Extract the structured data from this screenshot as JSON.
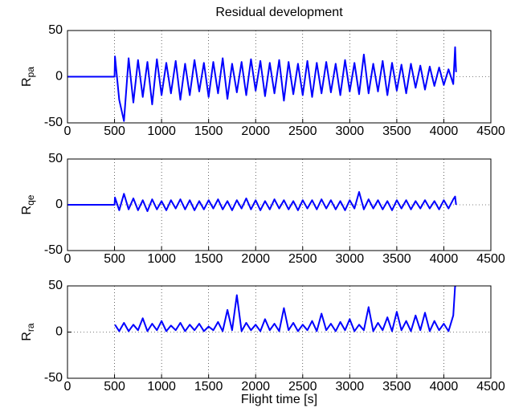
{
  "chart_data": [
    {
      "type": "line",
      "title": "Residual development",
      "ylabel": "R",
      "ylabel_sub": "pa",
      "xlim": [
        0,
        4500
      ],
      "xticks": [
        0,
        500,
        1000,
        1500,
        2000,
        2500,
        3000,
        3500,
        4000,
        4500
      ],
      "ylim": [
        -50,
        50
      ],
      "yticks": [
        -50,
        0,
        50
      ],
      "grid": true,
      "x": [
        0,
        500,
        505,
        550,
        600,
        650,
        700,
        750,
        800,
        850,
        900,
        950,
        1000,
        1050,
        1100,
        1150,
        1200,
        1250,
        1300,
        1350,
        1400,
        1450,
        1500,
        1550,
        1600,
        1650,
        1700,
        1750,
        1800,
        1850,
        1900,
        1950,
        2000,
        2050,
        2100,
        2150,
        2200,
        2250,
        2300,
        2350,
        2400,
        2450,
        2500,
        2550,
        2600,
        2650,
        2700,
        2750,
        2800,
        2850,
        2900,
        2950,
        3000,
        3050,
        3100,
        3150,
        3200,
        3250,
        3300,
        3350,
        3400,
        3450,
        3500,
        3550,
        3600,
        3650,
        3700,
        3750,
        3800,
        3850,
        3900,
        3950,
        4000,
        4050,
        4100,
        4120,
        4130
      ],
      "series": [
        {
          "color": "#0000ff",
          "values": [
            0,
            0,
            22,
            -25,
            -48,
            20,
            -28,
            18,
            -22,
            16,
            -30,
            19,
            -20,
            15,
            -18,
            17,
            -25,
            14,
            -20,
            18,
            -16,
            15,
            -22,
            16,
            -18,
            20,
            -24,
            14,
            -17,
            16,
            -20,
            19,
            -15,
            17,
            -21,
            15,
            -18,
            18,
            -26,
            16,
            -19,
            14,
            -20,
            17,
            -22,
            15,
            -18,
            16,
            -17,
            14,
            -20,
            18,
            -16,
            15,
            -19,
            24,
            -18,
            14,
            -16,
            17,
            -20,
            15,
            -15,
            13,
            -18,
            14,
            -12,
            12,
            -14,
            11,
            -10,
            10,
            -9,
            8,
            -8,
            32,
            5
          ]
        }
      ]
    },
    {
      "type": "line",
      "ylabel": "R",
      "ylabel_sub": "qe",
      "xlim": [
        0,
        4500
      ],
      "xticks": [
        0,
        500,
        1000,
        1500,
        2000,
        2500,
        3000,
        3500,
        4000,
        4500
      ],
      "ylim": [
        -50,
        50
      ],
      "yticks": [
        -50,
        0,
        50
      ],
      "grid": true,
      "x": [
        0,
        500,
        505,
        550,
        600,
        650,
        700,
        750,
        800,
        850,
        900,
        950,
        1000,
        1050,
        1100,
        1150,
        1200,
        1250,
        1300,
        1350,
        1400,
        1450,
        1500,
        1550,
        1600,
        1650,
        1700,
        1750,
        1800,
        1850,
        1900,
        1950,
        2000,
        2050,
        2100,
        2150,
        2200,
        2250,
        2300,
        2350,
        2400,
        2450,
        2500,
        2550,
        2600,
        2650,
        2700,
        2750,
        2800,
        2850,
        2900,
        2950,
        3000,
        3050,
        3100,
        3150,
        3200,
        3250,
        3300,
        3350,
        3400,
        3450,
        3500,
        3550,
        3600,
        3650,
        3700,
        3750,
        3800,
        3850,
        3900,
        3950,
        4000,
        4050,
        4100,
        4120,
        4130
      ],
      "series": [
        {
          "color": "#0000ff",
          "values": [
            0,
            0,
            8,
            -6,
            12,
            -5,
            7,
            -6,
            5,
            -7,
            6,
            -5,
            4,
            -6,
            5,
            -4,
            6,
            -5,
            5,
            -6,
            4,
            -5,
            5,
            -4,
            6,
            -5,
            4,
            -6,
            5,
            -4,
            7,
            -5,
            5,
            -6,
            4,
            -5,
            6,
            -4,
            5,
            -5,
            4,
            -6,
            5,
            -4,
            5,
            -5,
            6,
            -4,
            5,
            -5,
            4,
            -6,
            5,
            -4,
            14,
            -5,
            6,
            -4,
            5,
            -5,
            4,
            -6,
            5,
            -4,
            5,
            -5,
            4,
            -4,
            5,
            -4,
            4,
            -5,
            5,
            -4,
            6,
            9,
            0
          ]
        }
      ]
    },
    {
      "type": "line",
      "ylabel": "R",
      "ylabel_sub": "ra",
      "xlabel": "Flight time [s]",
      "xlim": [
        0,
        4500
      ],
      "xticks": [
        0,
        500,
        1000,
        1500,
        2000,
        2500,
        3000,
        3500,
        4000,
        4500
      ],
      "ylim": [
        -50,
        50
      ],
      "yticks": [
        -50,
        0,
        50
      ],
      "grid": true,
      "x": [
        0,
        500,
        505,
        550,
        600,
        650,
        700,
        750,
        800,
        850,
        900,
        950,
        1000,
        1050,
        1100,
        1150,
        1200,
        1250,
        1300,
        1350,
        1400,
        1450,
        1500,
        1550,
        1600,
        1650,
        1700,
        1750,
        1800,
        1850,
        1900,
        1950,
        2000,
        2050,
        2100,
        2150,
        2200,
        2250,
        2300,
        2350,
        2400,
        2450,
        2500,
        2550,
        2600,
        2650,
        2700,
        2750,
        2800,
        2850,
        2900,
        2950,
        3000,
        3050,
        3100,
        3150,
        3200,
        3250,
        3300,
        3350,
        3400,
        3450,
        3500,
        3550,
        3600,
        3650,
        3700,
        3750,
        3800,
        3850,
        3900,
        3950,
        4000,
        4050,
        4100,
        4120,
        4130
      ],
      "series": [
        {
          "color": "#0000ff",
          "values": [
            null,
            null,
            8,
            1,
            10,
            1,
            8,
            2,
            15,
            1,
            9,
            2,
            12,
            1,
            7,
            2,
            10,
            1,
            8,
            2,
            9,
            1,
            6,
            2,
            11,
            1,
            24,
            2,
            40,
            1,
            10,
            2,
            8,
            1,
            14,
            2,
            9,
            1,
            26,
            2,
            10,
            1,
            8,
            2,
            12,
            1,
            20,
            2,
            9,
            1,
            11,
            2,
            14,
            1,
            8,
            2,
            27,
            1,
            10,
            2,
            16,
            1,
            22,
            2,
            12,
            1,
            18,
            2,
            21,
            1,
            12,
            2,
            9,
            1,
            18,
            50,
            50
          ]
        }
      ]
    }
  ]
}
